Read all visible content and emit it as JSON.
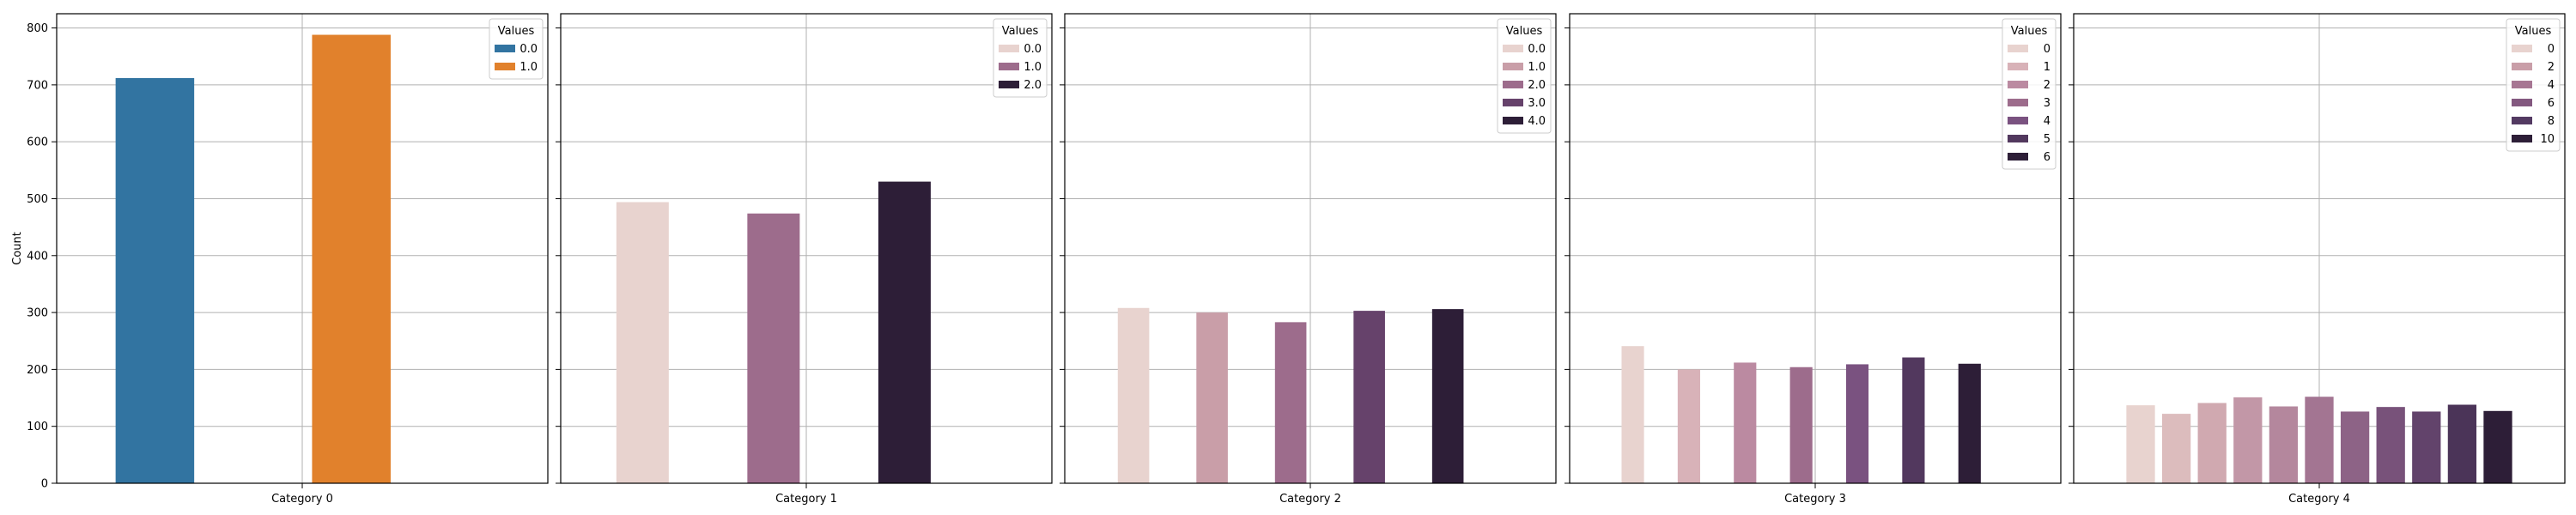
{
  "chart_data": {
    "type": "bar",
    "ylabel": "Count",
    "ylim": [
      0,
      825
    ],
    "yticks": [
      0,
      100,
      200,
      300,
      400,
      500,
      600,
      700,
      800
    ],
    "grid": true,
    "legend_title": "Values",
    "legend_position": "top-right",
    "panels": [
      {
        "category": "Category 0",
        "legend": [
          "0.0",
          "1.0"
        ],
        "colors": [
          "#3274a1",
          "#e1812c"
        ],
        "slots": 4,
        "bars": [
          {
            "slot": 0,
            "value": 712,
            "color": "#3274a1"
          },
          {
            "slot": 2,
            "value": 788,
            "color": "#e1812c"
          }
        ]
      },
      {
        "category": "Category 1",
        "legend": [
          "0.0",
          "1.0",
          "2.0"
        ],
        "colors": [
          "#e8d3cf",
          "#9d6c8c",
          "#2d1e37"
        ],
        "slots": 6,
        "bars": [
          {
            "slot": 0,
            "value": 494,
            "color": "#e8d3cf"
          },
          {
            "slot": 2,
            "value": 474,
            "color": "#9d6c8c"
          },
          {
            "slot": 4,
            "value": 530,
            "color": "#2d1e37"
          }
        ]
      },
      {
        "category": "Category 2",
        "legend": [
          "0.0",
          "1.0",
          "2.0",
          "3.0",
          "4.0"
        ],
        "colors": [
          "#e8d3cf",
          "#c99ea8",
          "#9d6c8c",
          "#66426b",
          "#2d1e37"
        ],
        "slots": 10,
        "bars": [
          {
            "slot": 0,
            "value": 308,
            "color": "#e8d3cf"
          },
          {
            "slot": 2,
            "value": 300,
            "color": "#c99ea8"
          },
          {
            "slot": 4,
            "value": 283,
            "color": "#9d6c8c"
          },
          {
            "slot": 6,
            "value": 303,
            "color": "#66426b"
          },
          {
            "slot": 8,
            "value": 306,
            "color": "#2d1e37"
          }
        ]
      },
      {
        "category": "Category 3",
        "legend": [
          "0",
          "1",
          "2",
          "3",
          "4",
          "5",
          "6"
        ],
        "colors": [
          "#e8d3cf",
          "#d8b2b8",
          "#bb8aa1",
          "#9d6c8c",
          "#7a5280",
          "#52385e",
          "#2d1e37"
        ],
        "slots": 14,
        "bars": [
          {
            "slot": 0,
            "value": 241,
            "color": "#e8d3cf"
          },
          {
            "slot": 2,
            "value": 200,
            "color": "#d8b2b8"
          },
          {
            "slot": 4,
            "value": 212,
            "color": "#bb8aa1"
          },
          {
            "slot": 6,
            "value": 204,
            "color": "#9d6c8c"
          },
          {
            "slot": 8,
            "value": 209,
            "color": "#7a5280"
          },
          {
            "slot": 10,
            "value": 221,
            "color": "#52385e"
          },
          {
            "slot": 12,
            "value": 210,
            "color": "#2d1e37"
          }
        ]
      },
      {
        "category": "Category 4",
        "legend": [
          "0",
          "2",
          "4",
          "6",
          "8",
          "10"
        ],
        "colors": [
          "#e8d3cf",
          "#c99ea8",
          "#a77693",
          "#83587f",
          "#533a62",
          "#2d1e37"
        ],
        "slots": 11,
        "bars": [
          {
            "slot": 0,
            "value": 137,
            "color": "#e8d3cf"
          },
          {
            "slot": 1,
            "value": 122,
            "color": "#dcbcbd"
          },
          {
            "slot": 2,
            "value": 141,
            "color": "#d0a9b0"
          },
          {
            "slot": 3,
            "value": 151,
            "color": "#c297a7"
          },
          {
            "slot": 4,
            "value": 135,
            "color": "#b4879d"
          },
          {
            "slot": 5,
            "value": 152,
            "color": "#a37592"
          },
          {
            "slot": 6,
            "value": 126,
            "color": "#8d6386"
          },
          {
            "slot": 7,
            "value": 134,
            "color": "#78527a"
          },
          {
            "slot": 8,
            "value": 126,
            "color": "#62436b"
          },
          {
            "slot": 9,
            "value": 138,
            "color": "#4b3458"
          },
          {
            "slot": 10,
            "value": 127,
            "color": "#2d1e37"
          }
        ]
      }
    ]
  }
}
